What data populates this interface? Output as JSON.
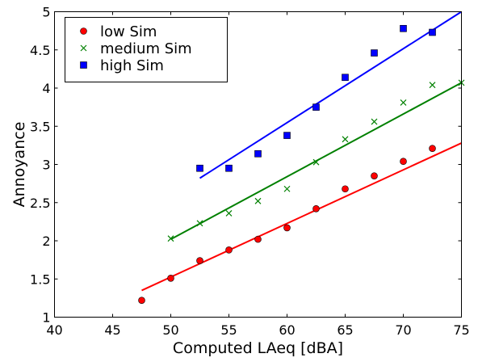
{
  "chart_data": {
    "type": "scatter",
    "xlabel": "Computed LAeq [dBA]",
    "ylabel": "Annoyance",
    "xlim": [
      40,
      75
    ],
    "ylim": [
      1,
      5
    ],
    "xticks": [
      "40",
      "45",
      "50",
      "55",
      "60",
      "65",
      "70",
      "75"
    ],
    "yticks": [
      "1",
      "1.5",
      "2",
      "2.5",
      "3",
      "3.5",
      "4",
      "4.5",
      "5"
    ],
    "legend_position": "top-left",
    "grid": false,
    "series": [
      {
        "name": "low Sim",
        "marker": "circle",
        "color": "#ff0000",
        "x": [
          47.5,
          50,
          52.5,
          55,
          57.5,
          60,
          62.5,
          65,
          67.5,
          70,
          72.5
        ],
        "y": [
          1.22,
          1.51,
          1.74,
          1.88,
          2.02,
          2.17,
          2.42,
          2.68,
          2.85,
          3.04,
          3.21
        ],
        "fit": {
          "x": [
            47.5,
            75
          ],
          "y": [
            1.35,
            3.28
          ],
          "color": "#ff0000"
        }
      },
      {
        "name": "medium Sim",
        "marker": "x",
        "color": "#008000",
        "x": [
          50,
          52.5,
          55,
          57.5,
          60,
          62.5,
          65,
          67.5,
          70,
          72.5,
          75
        ],
        "y": [
          2.03,
          2.23,
          2.36,
          2.52,
          2.68,
          3.03,
          3.33,
          3.56,
          3.81,
          4.04,
          4.07
        ],
        "fit": {
          "x": [
            50,
            75
          ],
          "y": [
            2.02,
            4.07
          ],
          "color": "#008000"
        }
      },
      {
        "name": "high Sim",
        "marker": "square",
        "color": "#0000ff",
        "x": [
          52.5,
          55,
          57.5,
          60,
          62.5,
          65,
          67.5,
          70,
          72.5
        ],
        "y": [
          2.95,
          2.95,
          3.14,
          3.38,
          3.75,
          4.14,
          4.46,
          4.78,
          4.73
        ],
        "fit": {
          "x": [
            52.5,
            75
          ],
          "y": [
            2.82,
            5.0
          ],
          "color": "#0000ff"
        }
      }
    ]
  }
}
